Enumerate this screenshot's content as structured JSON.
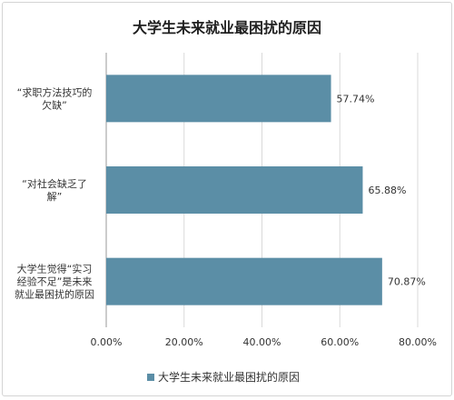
{
  "chart_data": {
    "type": "bar",
    "orientation": "horizontal",
    "title": "大学生未来就业最困扰的原因",
    "categories": [
      [
        "“求职方法技巧的",
        "欠缺”"
      ],
      [
        "“对社会缺乏了",
        "解”"
      ],
      [
        "大学生觉得“实习",
        "经验不足”是未来",
        "就业最困扰的原因"
      ]
    ],
    "series": [
      {
        "name": "大学生未来就业最困扰的原因",
        "values": [
          57.74,
          65.88,
          70.87
        ],
        "color": "#5b8ea6"
      }
    ],
    "data_labels": [
      "57.74%",
      "65.88%",
      "70.87%"
    ],
    "xlim": [
      0,
      80
    ],
    "x_ticks": [
      "0.00%",
      "20.00%",
      "40.00%",
      "60.00%",
      "80.00%"
    ],
    "grid": true,
    "legend_position": "bottom"
  }
}
